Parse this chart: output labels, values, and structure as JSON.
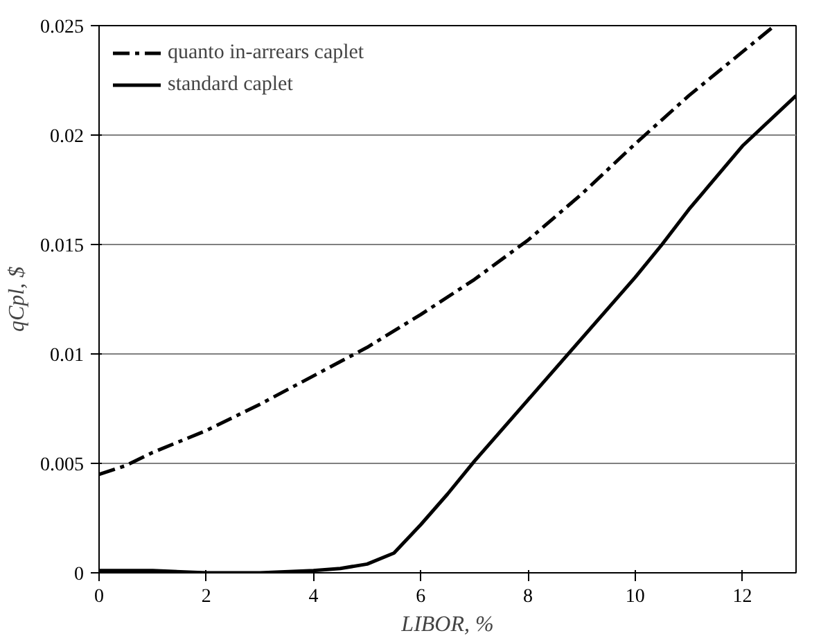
{
  "chart_data": {
    "type": "line",
    "xlabel": "LIBOR, %",
    "ylabel": "qCpl, $",
    "xlim": [
      0,
      13
    ],
    "ylim": [
      0,
      0.025
    ],
    "xticks": [
      0,
      2,
      4,
      6,
      8,
      10,
      12
    ],
    "yticks": [
      0,
      0.005,
      0.01,
      0.015,
      0.02,
      0.025
    ],
    "grid": "y",
    "legend": "top left",
    "series": [
      {
        "name": "quanto in-arrears caplet",
        "color": "#000000",
        "line_style": "dashdot",
        "x": [
          0,
          0.5,
          1,
          2,
          3,
          4,
          5,
          6,
          7,
          8,
          9,
          10,
          11,
          12,
          12.6
        ],
        "values": [
          0.0045,
          0.0049,
          0.0055,
          0.0065,
          0.0077,
          0.009,
          0.0103,
          0.0118,
          0.0134,
          0.0152,
          0.0173,
          0.0196,
          0.0218,
          0.0238,
          0.025
        ]
      },
      {
        "name": "standard caplet",
        "color": "#000000",
        "line_style": "solid",
        "x": [
          0,
          1,
          2,
          3,
          4,
          4.5,
          5,
          5.5,
          6,
          6.5,
          7,
          8,
          9,
          10,
          10.5,
          11,
          12,
          13
        ],
        "values": [
          0.0001,
          0.0001,
          0.0,
          0.0,
          0.0001,
          0.0002,
          0.0004,
          0.0009,
          0.0022,
          0.0036,
          0.0051,
          0.0079,
          0.0107,
          0.0135,
          0.015,
          0.0166,
          0.0195,
          0.0218
        ]
      }
    ]
  }
}
